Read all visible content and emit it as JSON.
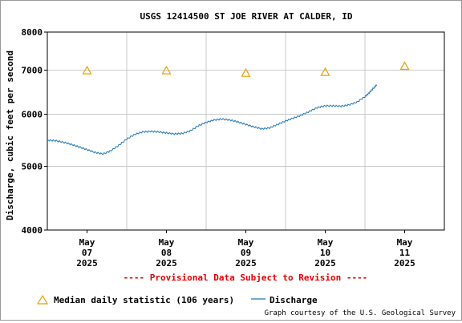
{
  "chart_data": {
    "type": "line",
    "title": "USGS 12414500 ST JOE RIVER AT CALDER, ID",
    "ylabel": "Discharge, cubic feet per second",
    "xlabel": "",
    "y_scale": "log",
    "ylim": [
      4000,
      8000
    ],
    "y_ticks": [
      4000,
      5000,
      6000,
      7000,
      8000
    ],
    "xlim_days": [
      6.5,
      11.5
    ],
    "x_ticks": [
      {
        "day": 7,
        "lines": [
          "May",
          "07",
          "2025"
        ]
      },
      {
        "day": 8,
        "lines": [
          "May",
          "08",
          "2025"
        ]
      },
      {
        "day": 9,
        "lines": [
          "May",
          "09",
          "2025"
        ]
      },
      {
        "day": 10,
        "lines": [
          "May",
          "10",
          "2025"
        ]
      },
      {
        "day": 11,
        "lines": [
          "May",
          "11",
          "2025"
        ]
      }
    ],
    "grid": true,
    "series": [
      {
        "name": "Discharge",
        "color": "#1f77b4",
        "x": [
          6.5,
          6.6,
          6.7,
          6.8,
          6.9,
          7.0,
          7.1,
          7.2,
          7.3,
          7.4,
          7.5,
          7.6,
          7.7,
          7.8,
          7.9,
          8.0,
          8.1,
          8.2,
          8.3,
          8.4,
          8.5,
          8.6,
          8.7,
          8.8,
          8.9,
          9.0,
          9.1,
          9.2,
          9.3,
          9.4,
          9.5,
          9.6,
          9.7,
          9.8,
          9.9,
          10.0,
          10.1,
          10.2,
          10.3,
          10.4,
          10.5,
          10.55,
          10.6,
          10.65
        ],
        "values": [
          5480,
          5470,
          5440,
          5400,
          5350,
          5300,
          5250,
          5220,
          5280,
          5380,
          5500,
          5590,
          5640,
          5650,
          5640,
          5620,
          5600,
          5610,
          5660,
          5760,
          5830,
          5880,
          5900,
          5880,
          5840,
          5790,
          5740,
          5700,
          5720,
          5790,
          5860,
          5920,
          5980,
          6060,
          6140,
          6180,
          6180,
          6170,
          6200,
          6260,
          6380,
          6460,
          6560,
          6650
        ]
      },
      {
        "name": "Median daily statistic (106 years)",
        "color": "#e8a000",
        "marker": "triangle",
        "x": [
          7,
          8,
          9,
          10,
          11
        ],
        "values": [
          6990,
          6990,
          6930,
          6950,
          7100
        ]
      }
    ]
  },
  "provisional_text": "---- Provisional Data Subject to Revision ----",
  "legend": {
    "median_label": "Median daily statistic (106 years)",
    "discharge_label": "Discharge"
  },
  "credit": "Graph courtesy of the U.S. Geological Survey"
}
